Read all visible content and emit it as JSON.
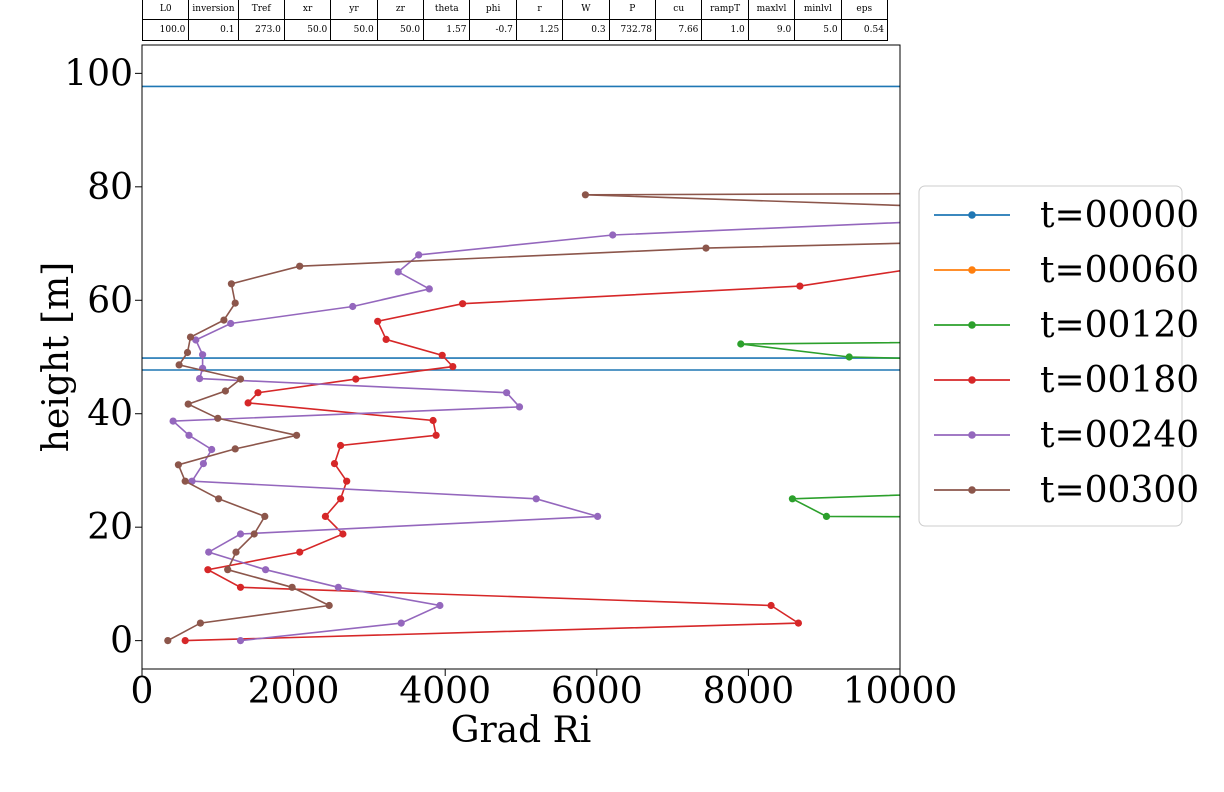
{
  "param_table": {
    "headers": [
      "L0",
      "inversion",
      "Tref",
      "xr",
      "yr",
      "zr",
      "theta",
      "phi",
      "r",
      "W",
      "P",
      "cu",
      "rampT",
      "maxlvl",
      "minlvl",
      "eps"
    ],
    "values": [
      "100.0",
      "0.1",
      "273.0",
      "50.0",
      "50.0",
      "50.0",
      "1.57",
      "-0.7",
      "1.25",
      "0.3",
      "732.78",
      "7.66",
      "1.0",
      "9.0",
      "5.0",
      "0.54"
    ]
  },
  "chart_data": {
    "type": "line",
    "title": "",
    "xlabel": "Grad Ri",
    "ylabel": "height [m]",
    "xlim": [
      0,
      10000
    ],
    "ylim": [
      -5,
      105
    ],
    "xticks": [
      "0",
      "2000",
      "4000",
      "6000",
      "8000",
      "10000"
    ],
    "yticks": [
      "0",
      "20",
      "40",
      "60",
      "80",
      "100"
    ],
    "xtick_values": [
      0,
      2000,
      4000,
      6000,
      8000,
      10000
    ],
    "ytick_values": [
      0,
      20,
      40,
      60,
      80,
      100
    ],
    "legend_position": "center-right, outside plot",
    "series": [
      {
        "name": "t=00000",
        "color": "#1f77b4",
        "markers": false,
        "points": [
          [
            -100000,
            47.7
          ],
          [
            100000,
            47.7
          ],
          [
            null,
            null
          ],
          [
            -100000,
            49.8
          ],
          [
            100000,
            49.8
          ],
          [
            null,
            null
          ],
          [
            -100000,
            97.7
          ],
          [
            100000,
            97.7
          ]
        ]
      },
      {
        "name": "t=00060",
        "color": "#ff7f0e",
        "markers": true,
        "points": []
      },
      {
        "name": "t=00120",
        "color": "#2ca02c",
        "markers": true,
        "points": [
          [
            14000,
            21.6
          ],
          [
            9030,
            21.9
          ],
          [
            8580,
            25.0
          ],
          [
            14000,
            27.5
          ],
          [
            null,
            null
          ],
          [
            14000,
            48.5
          ],
          [
            9330,
            50.0
          ],
          [
            7900,
            52.3
          ],
          [
            14000,
            53.0
          ]
        ]
      },
      {
        "name": "t=00180",
        "color": "#d62728",
        "markers": true,
        "points": [
          [
            570,
            0.0
          ],
          [
            8660,
            3.1
          ],
          [
            8300,
            6.2
          ],
          [
            1300,
            9.4
          ],
          [
            870,
            12.5
          ],
          [
            2080,
            15.6
          ],
          [
            2650,
            18.8
          ],
          [
            2420,
            21.9
          ],
          [
            2620,
            25.0
          ],
          [
            2700,
            28.1
          ],
          [
            2540,
            31.2
          ],
          [
            2620,
            34.4
          ],
          [
            3880,
            36.2
          ],
          [
            3840,
            38.8
          ],
          [
            1400,
            41.9
          ],
          [
            1530,
            43.7
          ],
          [
            2820,
            46.1
          ],
          [
            4100,
            48.3
          ],
          [
            3960,
            50.3
          ],
          [
            3220,
            53.1
          ],
          [
            3110,
            56.3
          ],
          [
            4230,
            59.4
          ],
          [
            8680,
            62.5
          ],
          [
            10200,
            65.6
          ]
        ]
      },
      {
        "name": "t=00240",
        "color": "#9467bd",
        "markers": true,
        "points": [
          [
            1300,
            0.0
          ],
          [
            3420,
            3.1
          ],
          [
            3930,
            6.2
          ],
          [
            2590,
            9.4
          ],
          [
            1630,
            12.5
          ],
          [
            880,
            15.6
          ],
          [
            1300,
            18.8
          ],
          [
            6010,
            21.9
          ],
          [
            5200,
            25.0
          ],
          [
            660,
            28.1
          ],
          [
            810,
            31.2
          ],
          [
            920,
            33.7
          ],
          [
            620,
            36.2
          ],
          [
            410,
            38.7
          ],
          [
            4980,
            41.2
          ],
          [
            4810,
            43.7
          ],
          [
            760,
            46.2
          ],
          [
            800,
            48.0
          ],
          [
            800,
            50.4
          ],
          [
            710,
            53.0
          ],
          [
            1170,
            55.9
          ],
          [
            2780,
            58.9
          ],
          [
            3790,
            62.0
          ],
          [
            3380,
            65.0
          ],
          [
            3650,
            68.0
          ],
          [
            6210,
            71.5
          ],
          [
            10500,
            74.0
          ]
        ]
      },
      {
        "name": "t=00300",
        "color": "#8c564b",
        "markers": true,
        "points": [
          [
            340,
            0.0
          ],
          [
            770,
            3.1
          ],
          [
            2470,
            6.2
          ],
          [
            1980,
            9.4
          ],
          [
            1130,
            12.5
          ],
          [
            1240,
            15.6
          ],
          [
            1480,
            18.8
          ],
          [
            1620,
            21.9
          ],
          [
            1010,
            25.0
          ],
          [
            570,
            28.1
          ],
          [
            480,
            31.0
          ],
          [
            1230,
            33.8
          ],
          [
            2040,
            36.2
          ],
          [
            1000,
            39.2
          ],
          [
            610,
            41.7
          ],
          [
            1100,
            44.0
          ],
          [
            1300,
            46.1
          ],
          [
            490,
            48.6
          ],
          [
            600,
            50.8
          ],
          [
            640,
            53.5
          ],
          [
            1080,
            56.5
          ],
          [
            1230,
            59.5
          ],
          [
            1180,
            62.9
          ],
          [
            2080,
            66.0
          ],
          [
            7440,
            69.2
          ],
          [
            10500,
            70.2
          ],
          [
            null,
            null
          ],
          [
            10500,
            76.5
          ],
          [
            5850,
            78.6
          ],
          [
            10500,
            78.8
          ]
        ]
      }
    ]
  }
}
